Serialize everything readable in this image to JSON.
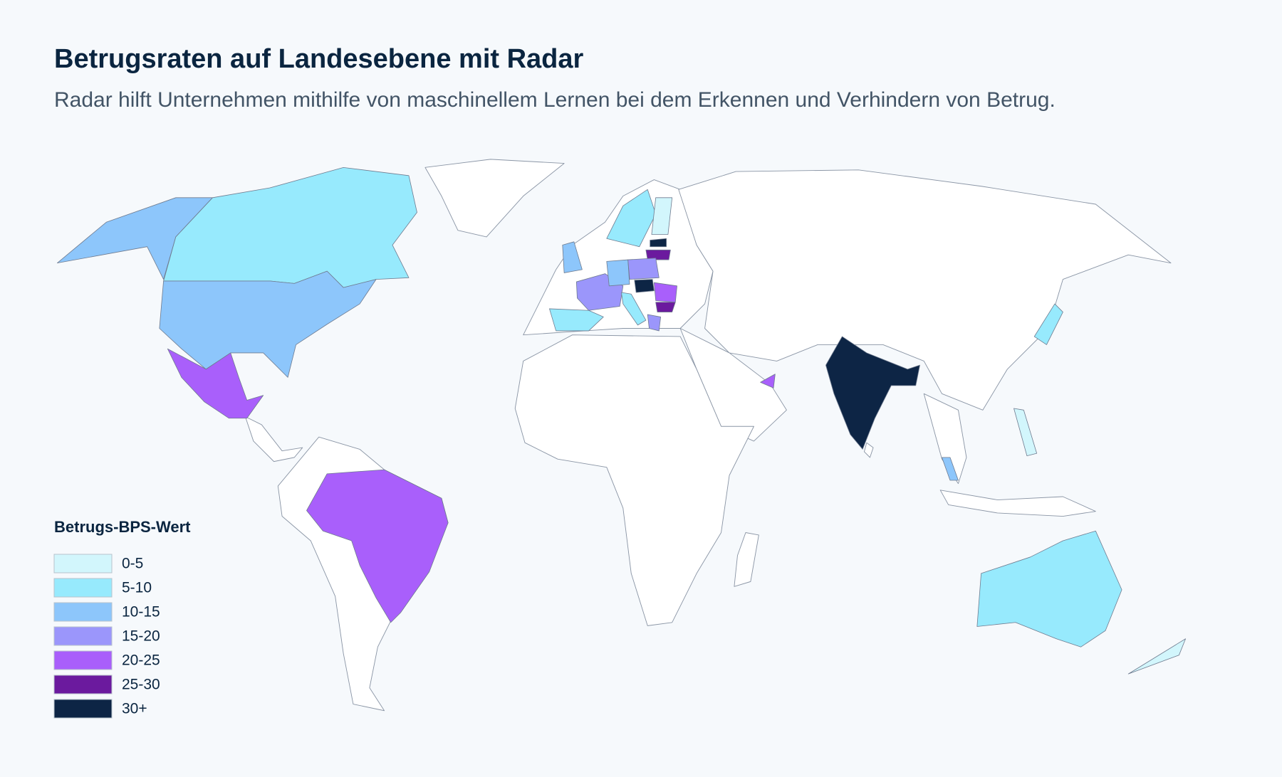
{
  "header": {
    "title": "Betrugsraten auf Landesebene mit Radar",
    "subtitle": "Radar hilft Unternehmen mithilfe von maschinellem Lernen bei dem Erkennen und Verhindern von Betrug."
  },
  "legend": {
    "title": "Betrugs-BPS-Wert",
    "items": [
      {
        "label": "0-5",
        "color": "#d2f6fc"
      },
      {
        "label": "5-10",
        "color": "#97eafd"
      },
      {
        "label": "10-15",
        "color": "#8dc6fb"
      },
      {
        "label": "15-20",
        "color": "#9b96fb"
      },
      {
        "label": "20-25",
        "color": "#a95ffb"
      },
      {
        "label": "25-30",
        "color": "#6b1a9e"
      },
      {
        "label": "30+",
        "color": "#0d2545"
      }
    ]
  }
}
